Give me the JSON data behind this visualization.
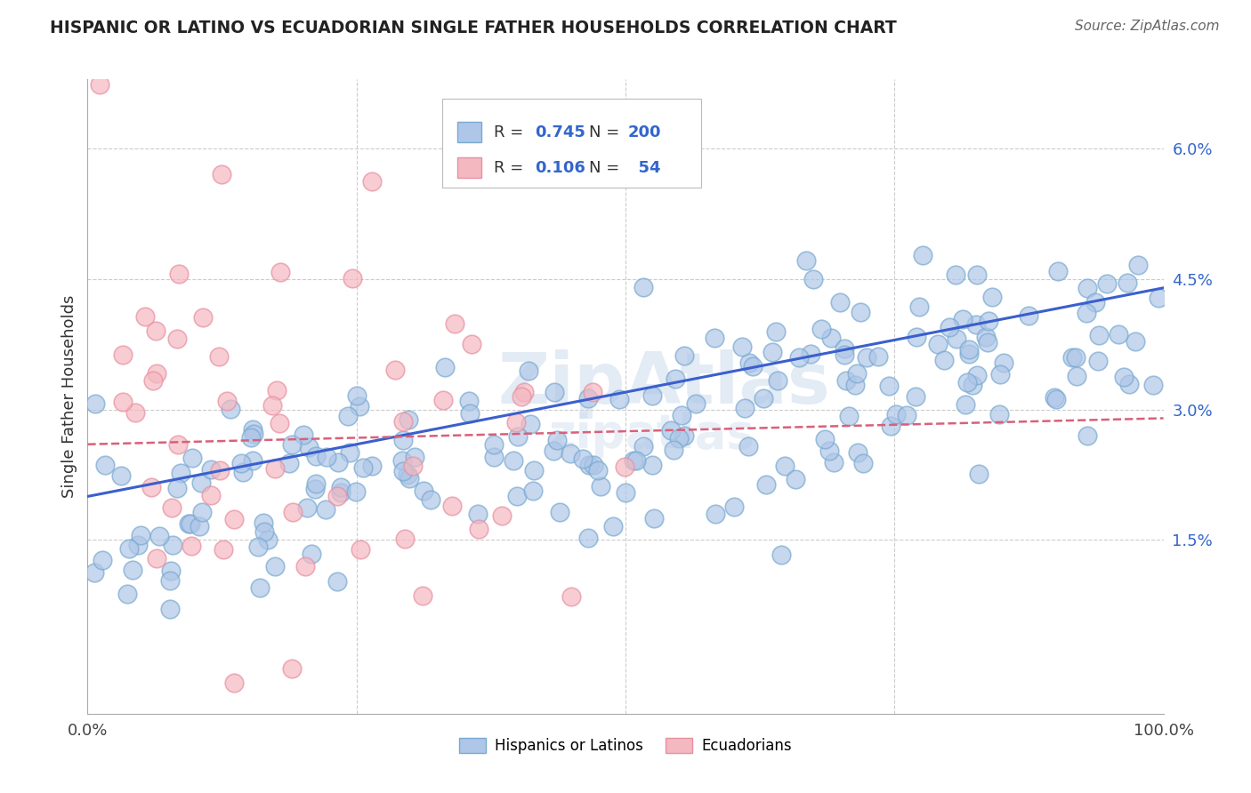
{
  "title": "HISPANIC OR LATINO VS ECUADORIAN SINGLE FATHER HOUSEHOLDS CORRELATION CHART",
  "source_text": "Source: ZipAtlas.com",
  "ylabel": "Single Father Households",
  "x_min": 0.0,
  "x_max": 1.0,
  "y_min": -0.005,
  "y_max": 0.068,
  "y_ticks": [
    0.015,
    0.03,
    0.045,
    0.06
  ],
  "y_tick_labels": [
    "1.5%",
    "3.0%",
    "4.5%",
    "6.0%"
  ],
  "x_ticks": [
    0.0,
    1.0
  ],
  "x_tick_labels": [
    "0.0%",
    "100.0%"
  ],
  "watermark": "ZipAtlas",
  "legend_entries": [
    {
      "label": "Hispanics or Latinos",
      "color": "#aec6e8"
    },
    {
      "label": "Ecuadorians",
      "color": "#f4b8c1"
    }
  ],
  "R_hispanic": 0.745,
  "N_hispanic": 200,
  "R_ecuadorian": 0.106,
  "N_ecuadorian": 54,
  "line_color_hispanic": "#3a5fcd",
  "line_color_ecuadorian": "#d9607a",
  "dot_color_hispanic": "#aec6e8",
  "dot_color_ecuadorian": "#f4b8c1",
  "dot_edge_hispanic": "#7aaad0",
  "dot_edge_ecuadorian": "#e890a0",
  "background_color": "#ffffff",
  "grid_color": "#cccccc",
  "title_color": "#222222",
  "legend_R_N_color": "#3366cc",
  "legend_label_color": "#333333"
}
